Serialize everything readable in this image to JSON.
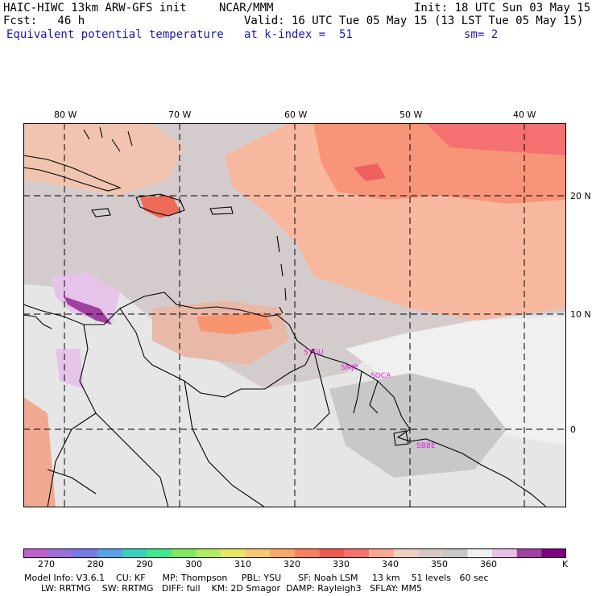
{
  "header": {
    "model_title": "HAIC-HIWC 13km ARW-GFS init",
    "org": "NCAR/MMM",
    "init": "Init: 18 UTC Sun 03 May 15",
    "fcst": "Fcst:   46 h",
    "valid": "Valid: 16 UTC Tue 05 May 15 (13 LST Tue 05 May 15)",
    "field": "Equivalent potential temperature",
    "level": "at k-index =  51",
    "smooth": "sm= 2"
  },
  "map": {
    "lon_labels": [
      "80 W",
      "70 W",
      "60 W",
      "50 W",
      "40 W"
    ],
    "lat_labels": [
      "20 N",
      "10 N",
      "0"
    ],
    "stations": [
      "SYGU",
      "SMJP",
      "SOCA",
      "SBBE"
    ]
  },
  "colorbar": {
    "colors": [
      "#c060d0",
      "#9a70d8",
      "#7878e8",
      "#5aa0e8",
      "#3ad0c0",
      "#40e890",
      "#80e860",
      "#b0ec60",
      "#e8e860",
      "#f8c870",
      "#f8a868",
      "#f88060",
      "#f05a50",
      "#f87070",
      "#f8a890",
      "#f0d0c0",
      "#d8c8c8",
      "#c8c8c8",
      "#f0f0f0",
      "#e8c0e8",
      "#a040a0",
      "#800080"
    ],
    "labels": [
      "270",
      "280",
      "290",
      "300",
      "310",
      "320",
      "330",
      "340",
      "350",
      "360"
    ],
    "unit": "K"
  },
  "footer": {
    "line1": "Model Info: V3.6.1    CU: KF      MP: Thompson     PBL: YSU      SF: Noah LSM     13 km    51 levels   60 sec",
    "line2": "      LW: RRTMG    SW: RRTMG   DIFF: full    KM: 2D Smagor  DAMP: Rayleigh3   SFLAY: MM5"
  }
}
